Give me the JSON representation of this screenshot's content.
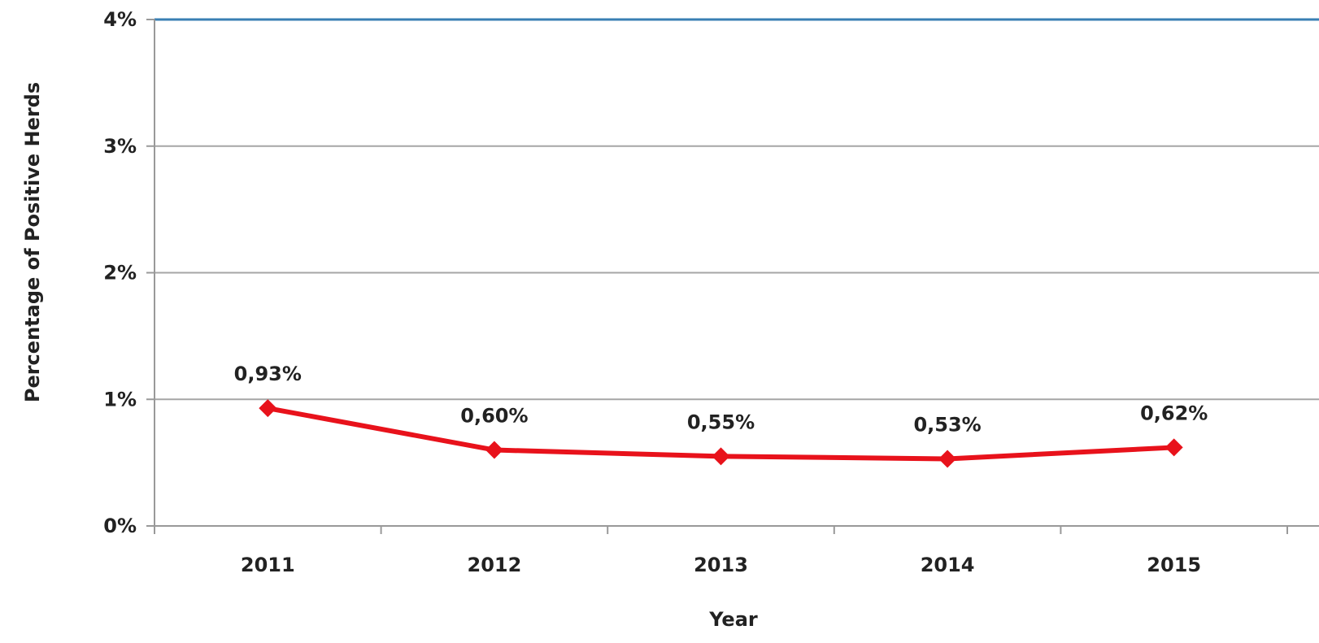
{
  "chart_data": {
    "type": "line",
    "title": "",
    "xlabel": "Year",
    "ylabel": "Percentage of Positive Herds",
    "categories": [
      "2011",
      "2012",
      "2013",
      "2014",
      "2015"
    ],
    "series": [
      {
        "values": [
          0.93,
          0.6,
          0.55,
          0.53,
          0.62
        ],
        "labels": [
          "0,93%",
          "0,60%",
          "0,55%",
          "0,53%",
          "0,62%"
        ],
        "color": "#e8121b",
        "marker": "diamond"
      }
    ],
    "ylim": [
      0,
      4
    ],
    "yticks": [
      0,
      1,
      2,
      3,
      4
    ],
    "ytick_labels": [
      "0%",
      "1%",
      "2%",
      "3%",
      "4%"
    ],
    "grid": true,
    "legend": "none",
    "colors": {
      "gridline": "#a6a6a6",
      "top_gridline": "#3a7fb3",
      "axis": "#999999",
      "text": "#222222"
    }
  }
}
